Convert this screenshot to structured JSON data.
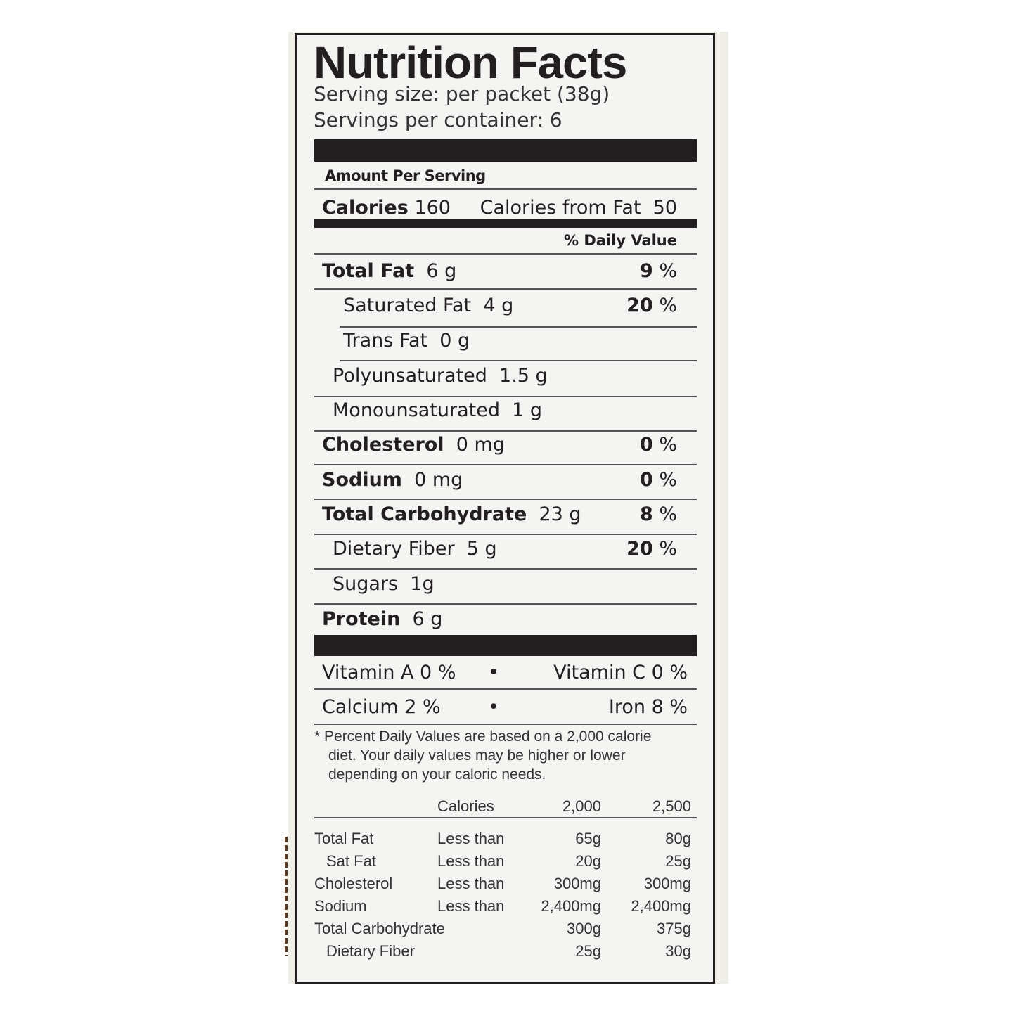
{
  "title": "Nutrition Facts",
  "serving_size": "Serving size: per packet (38g)",
  "servings_per_container": "Servings per container: 6",
  "amount_per_serving": "Amount Per Serving",
  "calories": {
    "label": "Calories",
    "value": "160",
    "from_fat_label": "Calories from Fat",
    "from_fat_value": "50"
  },
  "daily_value_header": "% Daily Value",
  "nutrients": [
    {
      "name": "Total Fat",
      "amount": "6 g",
      "dv": "9",
      "bold": true
    },
    {
      "name": "Saturated Fat",
      "amount": "4 g",
      "dv": "20",
      "bold": false
    },
    {
      "name": "Trans Fat",
      "amount": "0 g",
      "dv": "",
      "bold": false
    },
    {
      "name": "Polyunsaturated",
      "amount": "1.5 g",
      "dv": "",
      "bold": false
    },
    {
      "name": "Monounsaturated",
      "amount": "1 g",
      "dv": "",
      "bold": false
    },
    {
      "name": "Cholesterol",
      "amount": "0 mg",
      "dv": "0",
      "bold": true
    },
    {
      "name": "Sodium",
      "amount": "0 mg",
      "dv": "0",
      "bold": true
    },
    {
      "name": "Total Carbohydrate",
      "amount": "23 g",
      "dv": "8",
      "bold": true
    },
    {
      "name": "Dietary Fiber",
      "amount": "5 g",
      "dv": "20",
      "bold": false
    },
    {
      "name": "Sugars",
      "amount": "1g",
      "dv": "",
      "bold": false
    },
    {
      "name": "Protein",
      "amount": "6 g",
      "dv": "",
      "bold": true
    }
  ],
  "percent_sign": "%",
  "vitamins": [
    {
      "left": "Vitamin A  0 %",
      "bullet": "•",
      "right": "Vitamin C  0 %"
    },
    {
      "left": "Calcium  2 %",
      "bullet": "•",
      "right": "Iron  8 %"
    }
  ],
  "footnote": "* Percent Daily Values are based on a 2,000 calorie diet. Your daily values may be higher or lower depending on your caloric needs.",
  "footnote_lines": [
    "* Percent Daily Values are based on a 2,000 calorie",
    "diet. Your daily values may be higher or lower",
    "depending on your caloric needs."
  ],
  "reference_table": {
    "header": [
      "",
      "Calories",
      "2,000",
      "2,500"
    ],
    "rows": [
      [
        "Total Fat",
        "Less than",
        "65g",
        "80g"
      ],
      [
        "Sat Fat",
        "Less than",
        "20g",
        "25g"
      ],
      [
        "Cholesterol",
        "Less than",
        "300mg",
        "300mg"
      ],
      [
        "Sodium",
        "Less than",
        "2,400mg",
        "2,400mg"
      ],
      [
        "Total Carbohydrate",
        "",
        "300g",
        "375g"
      ],
      [
        "Dietary Fiber",
        "",
        "25g",
        "30g"
      ]
    ]
  }
}
